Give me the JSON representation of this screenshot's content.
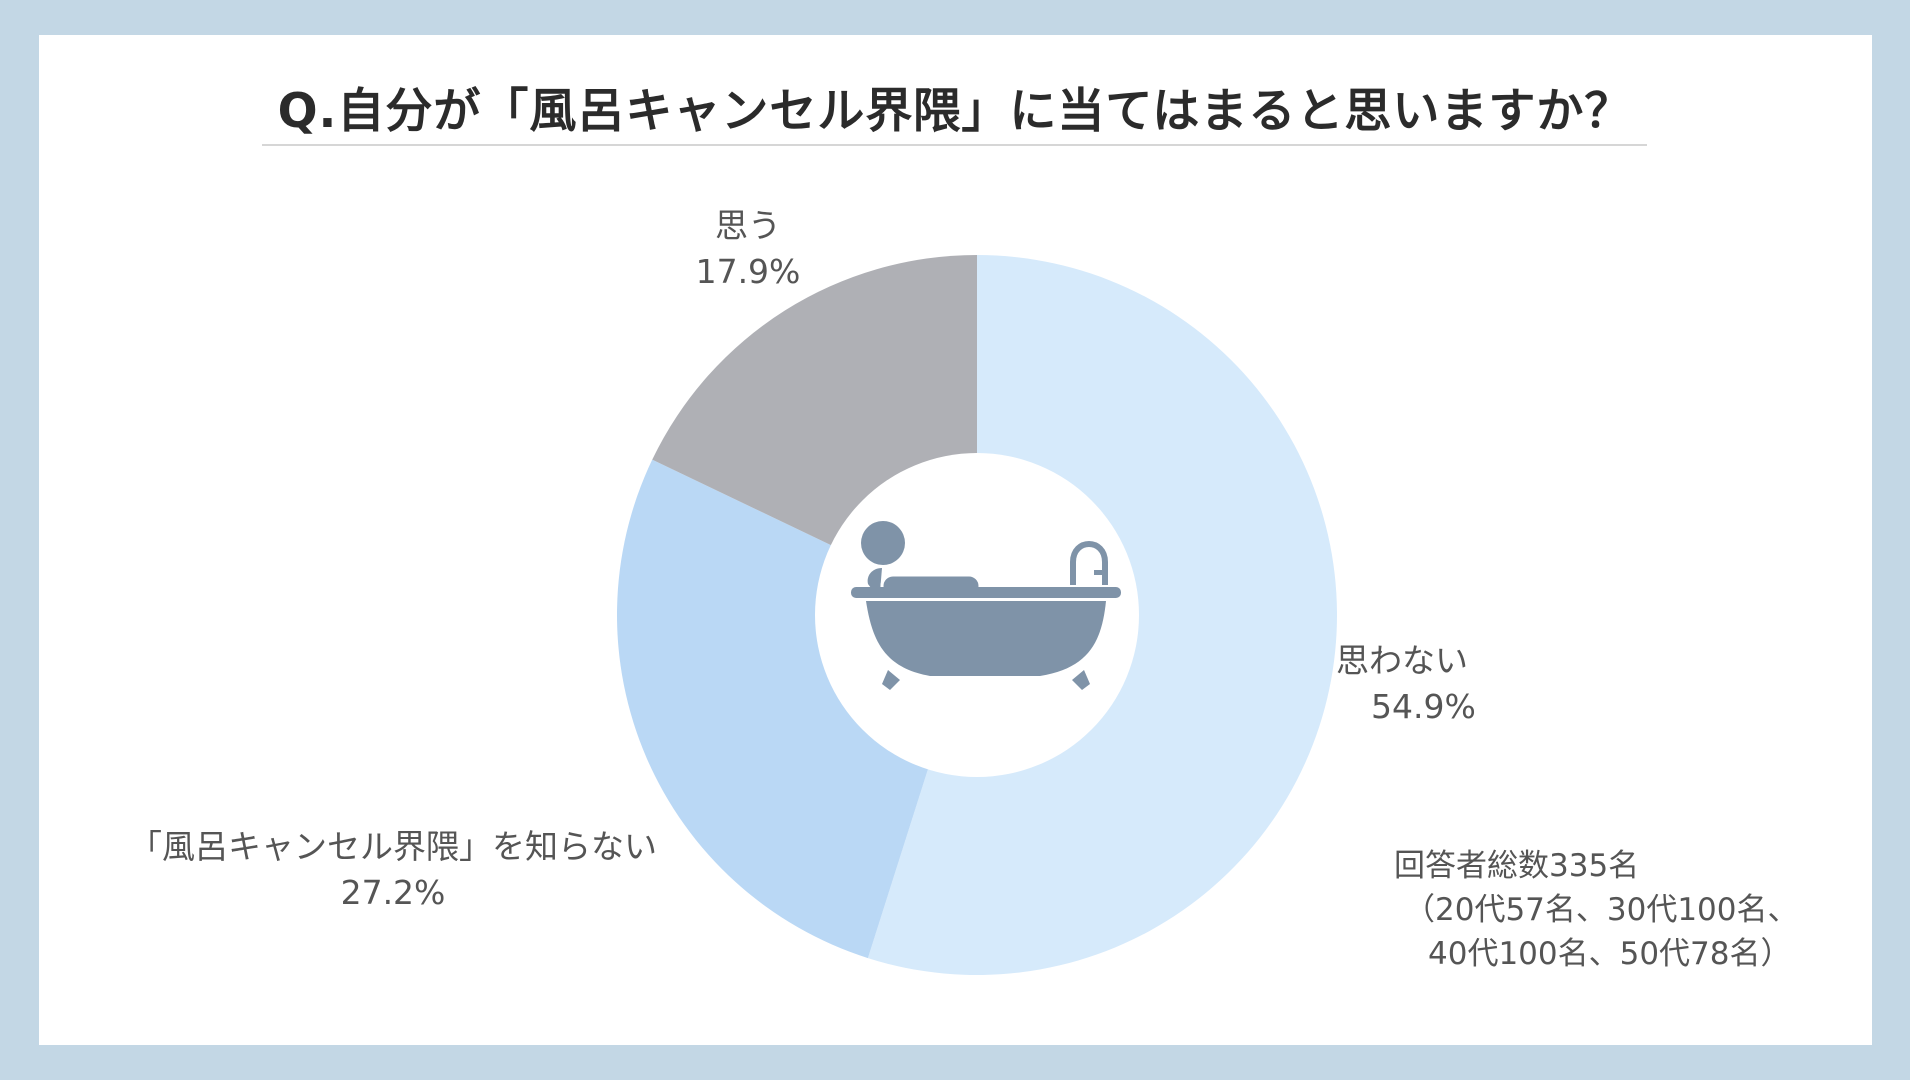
{
  "title": "Q.自分が「風呂キャンセル界隈」に当てはまると思いますか？",
  "chart_data": {
    "type": "pie",
    "title": "Q.自分が「風呂キャンセル界隈」に当てはまると思いますか？",
    "categories": [
      "思わない",
      "「風呂キャンセル界隈」を知らない",
      "思う"
    ],
    "values": [
      54.9,
      27.2,
      17.9
    ],
    "value_labels": [
      "54.9%",
      "27.2%",
      "17.9%"
    ],
    "colors": [
      "#d6eafb",
      "#bad8f5",
      "#afb0b5"
    ],
    "donut": true,
    "center_icon": "bathtub-icon"
  },
  "note": {
    "line1": "回答者総数335名",
    "line2": "（20代57名、30代100名、",
    "line3": "40代100名、50代78名）"
  },
  "icon_color": "#7f93a8"
}
